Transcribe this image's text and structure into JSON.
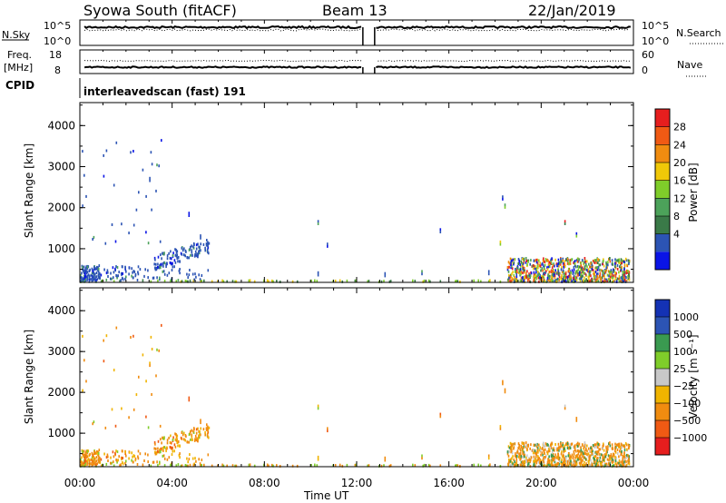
{
  "header": {
    "station": "Syowa South (fitACF)",
    "beam": "Beam 13",
    "date": "22/Jan/2019"
  },
  "top_panel": {
    "left_label": "N.Sky",
    "left_ticks": [
      "10^5",
      "10^0"
    ],
    "right_label": "N.Search",
    "right_ticks": [
      "10^5",
      "10^0"
    ]
  },
  "freq_panel": {
    "left_label_1": "Freq.",
    "left_label_2": "[MHz]",
    "left_ticks": [
      "18",
      "8"
    ],
    "right_label": "Nave",
    "right_ticks": [
      "60",
      "0"
    ],
    "cpid_label": "CPID",
    "cpid_value": "interleavedscan (fast) 191"
  },
  "colors": {
    "power_scale": [
      "#0a14e6",
      "#2c54b4",
      "#3a7a48",
      "#4ca25a",
      "#7fcd2a",
      "#f0c808",
      "#f08c10",
      "#f05a14",
      "#e61e1e"
    ],
    "velocity_scale": [
      "#e61e1e",
      "#f05a14",
      "#f08c10",
      "#f0b400",
      "#c8c8c8",
      "#7fcd2a",
      "#3a9a50",
      "#2c54b4",
      "#1432b4"
    ]
  },
  "chart_data": [
    {
      "type": "heatmap",
      "title": "",
      "xlabel": "",
      "ylabel": "Slant Range [km]",
      "xlim": [
        0,
        24
      ],
      "ylim": [
        180,
        4560
      ],
      "x_ticks": [
        "00:00",
        "04:00",
        "08:00",
        "12:00",
        "16:00",
        "20:00",
        "00:00"
      ],
      "y_ticks": [
        "1000",
        "2000",
        "3000",
        "4000"
      ],
      "colorbar": {
        "label": "Power [dB]",
        "ticks": [
          "4",
          "8",
          "12",
          "16",
          "20",
          "24",
          "28"
        ],
        "range": [
          0,
          30
        ]
      }
    },
    {
      "type": "heatmap",
      "title": "",
      "xlabel": "Time UT",
      "ylabel": "Slant Range [km]",
      "xlim": [
        0,
        24
      ],
      "ylim": [
        180,
        4560
      ],
      "x_ticks": [
        "00:00",
        "04:00",
        "08:00",
        "12:00",
        "16:00",
        "20:00",
        "00:00"
      ],
      "y_ticks": [
        "1000",
        "2000",
        "3000",
        "4000"
      ],
      "colorbar": {
        "label": "Velocity [m s⁻¹]",
        "ticks": [
          "1000",
          "500",
          "100",
          "25",
          "−25",
          "−100",
          "−500",
          "−1000"
        ]
      }
    }
  ]
}
